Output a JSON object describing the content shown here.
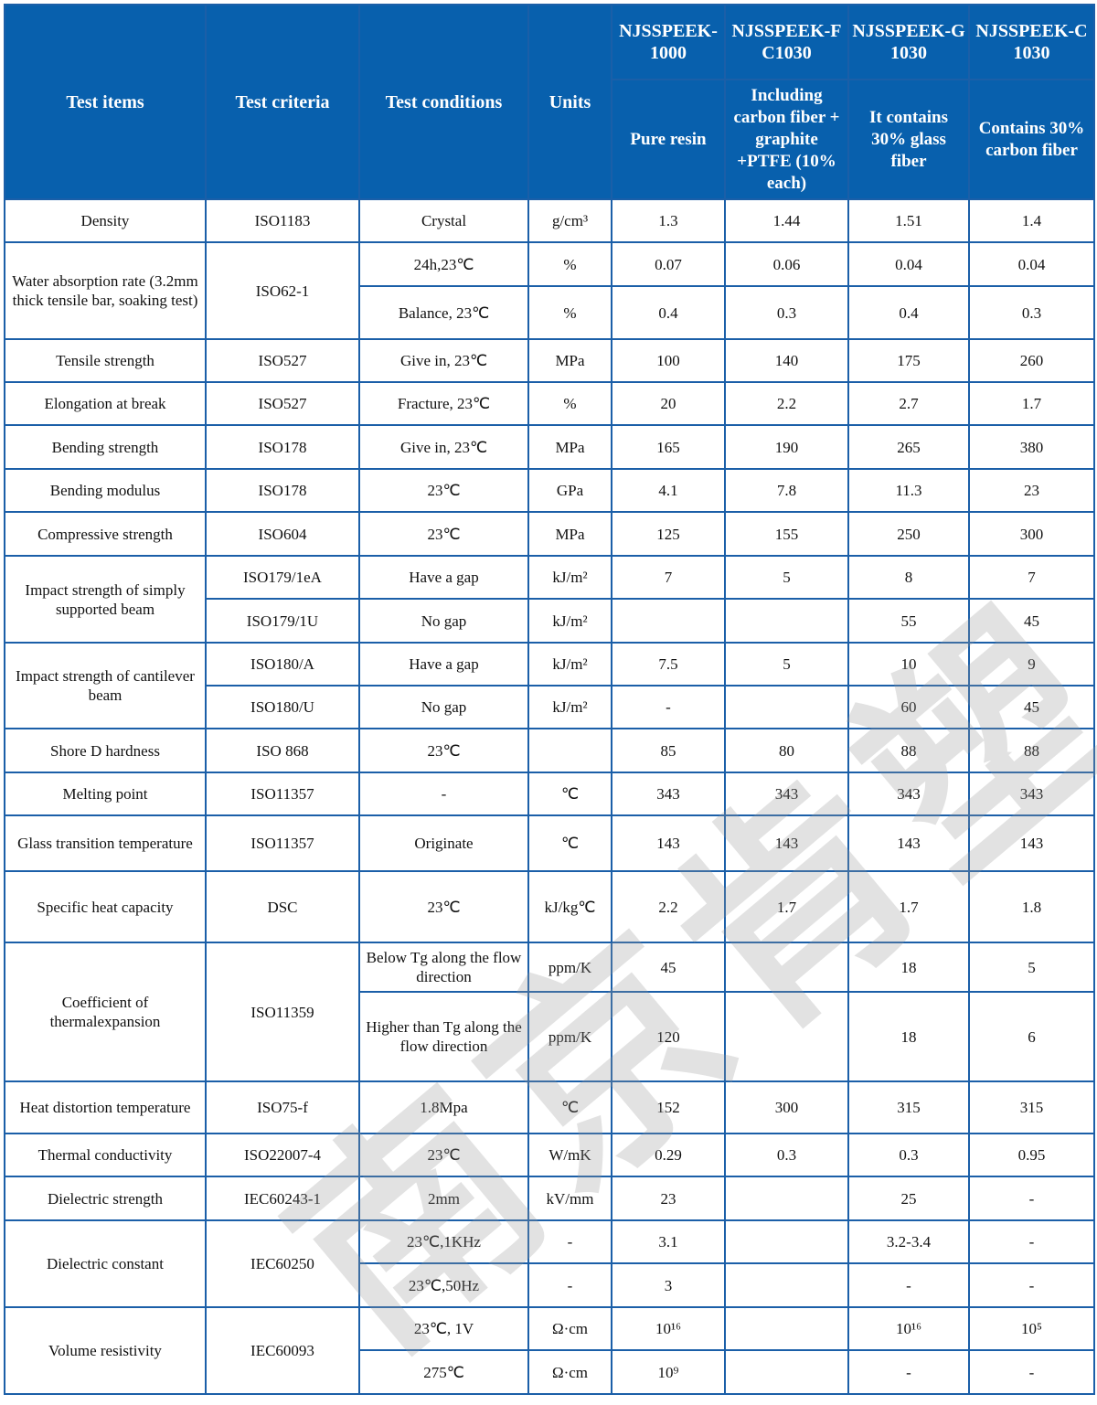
{
  "header": {
    "test_items": "Test items",
    "test_criteria": "Test criteria",
    "test_conditions": "Test conditions",
    "units": "Units",
    "grades": [
      {
        "name": "NJSSPEEK-1000",
        "desc": "Pure resin"
      },
      {
        "name": "NJSSPEEK-FC1030",
        "desc": "Including carbon fiber + graphite +PTFE (10% each)"
      },
      {
        "name": "NJSSPEEK-G1030",
        "desc": "It contains 30% glass fiber"
      },
      {
        "name": "NJSSPEEK-C1030",
        "desc": "Contains 30% carbon fiber"
      }
    ]
  },
  "watermark": "南京肯塑",
  "rows": [
    {
      "cells": [
        {
          "t": "Density"
        },
        {
          "t": "ISO1183"
        },
        {
          "t": "Crystal"
        },
        {
          "t": "g/cm³"
        },
        {
          "t": "1.3"
        },
        {
          "t": "1.44"
        },
        {
          "t": "1.51"
        },
        {
          "t": "1.4"
        }
      ]
    },
    {
      "cells": [
        {
          "t": "Water absorption rate (3.2mm thick tensile bar, soaking test)",
          "span": 2
        },
        {
          "t": "ISO62-1",
          "span": 2
        },
        {
          "t": "24h,23℃"
        },
        {
          "t": "%"
        },
        {
          "t": "0.07"
        },
        {
          "t": "0.06"
        },
        {
          "t": "0.04"
        },
        {
          "t": "0.04"
        }
      ]
    },
    {
      "cells": [
        {
          "t": "Balance, 23℃"
        },
        {
          "t": "%"
        },
        {
          "t": "0.4"
        },
        {
          "t": "0.3"
        },
        {
          "t": "0.4"
        },
        {
          "t": "0.3"
        }
      ]
    },
    {
      "cells": [
        {
          "t": "Tensile strength"
        },
        {
          "t": "ISO527"
        },
        {
          "t": "Give in, 23℃"
        },
        {
          "t": "MPa"
        },
        {
          "t": "100"
        },
        {
          "t": "140"
        },
        {
          "t": "175"
        },
        {
          "t": "260"
        }
      ]
    },
    {
      "cells": [
        {
          "t": "Elongation at break"
        },
        {
          "t": "ISO527"
        },
        {
          "t": "Fracture, 23℃"
        },
        {
          "t": "%"
        },
        {
          "t": "20"
        },
        {
          "t": "2.2"
        },
        {
          "t": "2.7"
        },
        {
          "t": "1.7"
        }
      ]
    },
    {
      "cells": [
        {
          "t": "Bending strength"
        },
        {
          "t": "ISO178"
        },
        {
          "t": "Give in, 23℃"
        },
        {
          "t": "MPa"
        },
        {
          "t": "165"
        },
        {
          "t": "190"
        },
        {
          "t": "265"
        },
        {
          "t": "380"
        }
      ]
    },
    {
      "cells": [
        {
          "t": "Bending modulus"
        },
        {
          "t": "ISO178"
        },
        {
          "t": "23℃"
        },
        {
          "t": "GPa"
        },
        {
          "t": "4.1"
        },
        {
          "t": "7.8"
        },
        {
          "t": "11.3"
        },
        {
          "t": "23"
        }
      ]
    },
    {
      "cells": [
        {
          "t": "Compressive strength"
        },
        {
          "t": "ISO604"
        },
        {
          "t": "23℃"
        },
        {
          "t": "MPa"
        },
        {
          "t": "125"
        },
        {
          "t": "155"
        },
        {
          "t": "250"
        },
        {
          "t": "300"
        }
      ]
    },
    {
      "cells": [
        {
          "t": "Impact strength of simply supported beam",
          "span": 2
        },
        {
          "t": "ISO179/1eA"
        },
        {
          "t": "Have a gap"
        },
        {
          "t": "kJ/m²"
        },
        {
          "t": "7"
        },
        {
          "t": "5"
        },
        {
          "t": "8"
        },
        {
          "t": "7"
        }
      ]
    },
    {
      "cells": [
        {
          "t": "ISO179/1U"
        },
        {
          "t": "No gap"
        },
        {
          "t": "kJ/m²"
        },
        {
          "t": ""
        },
        {
          "t": ""
        },
        {
          "t": "55"
        },
        {
          "t": "45"
        }
      ]
    },
    {
      "cells": [
        {
          "t": "Impact strength of cantilever beam",
          "span": 2
        },
        {
          "t": "ISO180/A"
        },
        {
          "t": "Have a gap"
        },
        {
          "t": "kJ/m²"
        },
        {
          "t": "7.5"
        },
        {
          "t": "5"
        },
        {
          "t": "10"
        },
        {
          "t": "9"
        }
      ]
    },
    {
      "cells": [
        {
          "t": "ISO180/U"
        },
        {
          "t": "No gap"
        },
        {
          "t": "kJ/m²"
        },
        {
          "t": "-"
        },
        {
          "t": ""
        },
        {
          "t": "60"
        },
        {
          "t": "45"
        }
      ]
    },
    {
      "cells": [
        {
          "t": "Shore D hardness"
        },
        {
          "t": "ISO 868"
        },
        {
          "t": "23℃"
        },
        {
          "t": ""
        },
        {
          "t": "85"
        },
        {
          "t": "80"
        },
        {
          "t": "88"
        },
        {
          "t": "88"
        }
      ]
    },
    {
      "cells": [
        {
          "t": "Melting point"
        },
        {
          "t": "ISO11357"
        },
        {
          "t": "-"
        },
        {
          "t": "℃"
        },
        {
          "t": "343"
        },
        {
          "t": "343"
        },
        {
          "t": "343"
        },
        {
          "t": "343"
        }
      ]
    },
    {
      "cells": [
        {
          "t": "Glass transition temperature"
        },
        {
          "t": "ISO11357"
        },
        {
          "t": "Originate"
        },
        {
          "t": "℃"
        },
        {
          "t": "143"
        },
        {
          "t": "143"
        },
        {
          "t": "143"
        },
        {
          "t": "143"
        }
      ]
    },
    {
      "cells": [
        {
          "t": "Specific heat capacity"
        },
        {
          "t": "DSC"
        },
        {
          "t": "23℃"
        },
        {
          "t": "kJ/kg℃"
        },
        {
          "t": "2.2"
        },
        {
          "t": "1.7"
        },
        {
          "t": "1.7"
        },
        {
          "t": "1.8"
        }
      ]
    },
    {
      "cells": [
        {
          "t": "Coefficient of thermalexpansion",
          "span": 2
        },
        {
          "t": "ISO11359",
          "span": 2
        },
        {
          "t": "Below Tg along the flow direction"
        },
        {
          "t": "ppm/K"
        },
        {
          "t": "45"
        },
        {
          "t": ""
        },
        {
          "t": "18"
        },
        {
          "t": "5"
        }
      ]
    },
    {
      "cells": [
        {
          "t": "Higher than Tg along the flow direction"
        },
        {
          "t": "ppm/K"
        },
        {
          "t": "120"
        },
        {
          "t": ""
        },
        {
          "t": "18"
        },
        {
          "t": "6"
        }
      ]
    },
    {
      "cells": [
        {
          "t": "Heat distortion temperature"
        },
        {
          "t": "ISO75-f"
        },
        {
          "t": "1.8Mpa"
        },
        {
          "t": "℃"
        },
        {
          "t": "152"
        },
        {
          "t": "300"
        },
        {
          "t": "315"
        },
        {
          "t": "315"
        }
      ]
    },
    {
      "cells": [
        {
          "t": "Thermal conductivity"
        },
        {
          "t": "ISO22007-4"
        },
        {
          "t": "23℃"
        },
        {
          "t": "W/mK"
        },
        {
          "t": "0.29"
        },
        {
          "t": "0.3"
        },
        {
          "t": "0.3"
        },
        {
          "t": "0.95"
        }
      ]
    },
    {
      "cells": [
        {
          "t": "Dielectric strength"
        },
        {
          "t": "IEC60243-1"
        },
        {
          "t": "2mm"
        },
        {
          "t": "kV/mm"
        },
        {
          "t": "23"
        },
        {
          "t": ""
        },
        {
          "t": "25"
        },
        {
          "t": "-"
        }
      ]
    },
    {
      "cells": [
        {
          "t": "Dielectric constant",
          "span": 2
        },
        {
          "t": "IEC60250",
          "span": 2
        },
        {
          "t": "23℃,1KHz"
        },
        {
          "t": "-"
        },
        {
          "t": "3.1"
        },
        {
          "t": ""
        },
        {
          "t": "3.2-3.4"
        },
        {
          "t": "-"
        }
      ]
    },
    {
      "cells": [
        {
          "t": "23℃,50Hz"
        },
        {
          "t": "-"
        },
        {
          "t": "3"
        },
        {
          "t": ""
        },
        {
          "t": "-"
        },
        {
          "t": "-"
        }
      ]
    },
    {
      "cells": [
        {
          "t": "Volume resistivity",
          "span": 2
        },
        {
          "t": "IEC60093",
          "span": 2
        },
        {
          "t": "23℃, 1V"
        },
        {
          "t": "Ω·cm"
        },
        {
          "t": "10¹⁶"
        },
        {
          "t": ""
        },
        {
          "t": "10¹⁶"
        },
        {
          "t": "10⁵"
        }
      ]
    },
    {
      "cells": [
        {
          "t": "275℃"
        },
        {
          "t": "Ω·cm"
        },
        {
          "t": "10⁹"
        },
        {
          "t": ""
        },
        {
          "t": "-"
        },
        {
          "t": "-"
        }
      ]
    }
  ]
}
